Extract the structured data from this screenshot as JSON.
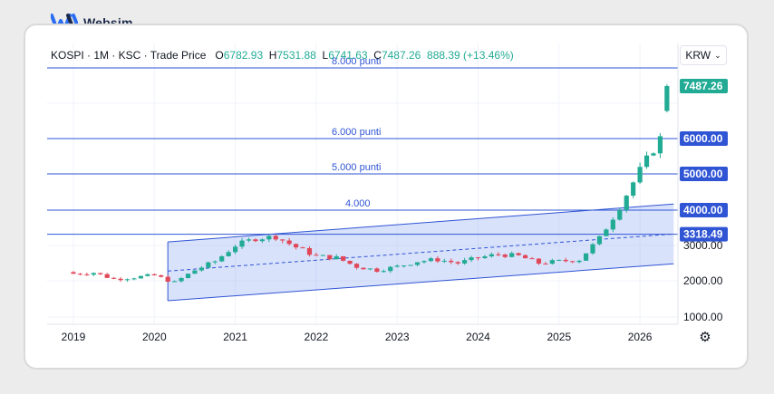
{
  "brand": {
    "name": "Websim"
  },
  "legend": {
    "symbol": "KOSPI · 1M · KSC · Trade Price",
    "open_k": "O",
    "open_v": "6782.93",
    "high_k": "H",
    "high_v": "7531.88",
    "low_k": "L",
    "low_v": "6741.63",
    "close_k": "C",
    "close_v": "7487.26",
    "change": "888.39 (+13.46%)"
  },
  "currency": {
    "label": "KRW"
  },
  "colors": {
    "up": "#22ab94",
    "down": "#e0485a",
    "level": "#2f54d4",
    "channel": "#9db5f2"
  },
  "chart_data": {
    "type": "candlestick",
    "title": "KOSPI · 1M · KSC · Trade Price",
    "x_ticks": [
      "2019",
      "2020",
      "2021",
      "2022",
      "2023",
      "2024",
      "2025",
      "2026"
    ],
    "y_ticks": [
      1000,
      2000,
      3000
    ],
    "y_axis_labels": [
      "1000.00",
      "2000.00",
      "3000.00"
    ],
    "ylim": [
      700,
      8000
    ],
    "price_badges": [
      {
        "value": 7487.26,
        "label": "7487.26",
        "kind": "last"
      },
      {
        "value": 6000,
        "label": "6000.00",
        "kind": "level"
      },
      {
        "value": 5000,
        "label": "5000.00",
        "kind": "level"
      },
      {
        "value": 4000,
        "label": "4000.00",
        "kind": "level"
      },
      {
        "value": 3318.49,
        "label": "3318.49",
        "kind": "level"
      }
    ],
    "horizontal_levels": [
      {
        "value": 8000,
        "label": "8.000 punti"
      },
      {
        "value": 6000,
        "label": "6.000 punti"
      },
      {
        "value": 5000,
        "label": "5.000 punti"
      },
      {
        "value": 4000,
        "label": "4.000"
      },
      {
        "value": 3318.49,
        "label": ""
      }
    ],
    "channel": {
      "start": "2020-03",
      "end": "2026-06",
      "upper": [
        3100,
        4170
      ],
      "lower": [
        1450,
        2480
      ],
      "mid": [
        2275,
        3325
      ]
    },
    "quarterly_closes": [
      [
        "2019-01",
        2200
      ],
      [
        "2019-04",
        2230
      ],
      [
        "2019-07",
        2050
      ],
      [
        "2019-10",
        2100
      ],
      [
        "2020-01",
        2150
      ],
      [
        "2020-04",
        1950
      ],
      [
        "2020-07",
        2300
      ],
      [
        "2020-10",
        2550
      ],
      [
        "2021-01",
        3000
      ],
      [
        "2021-04",
        3200
      ],
      [
        "2021-07",
        3250
      ],
      [
        "2021-10",
        2950
      ],
      [
        "2022-01",
        2700
      ],
      [
        "2022-04",
        2650
      ],
      [
        "2022-07",
        2400
      ],
      [
        "2022-10",
        2300
      ],
      [
        "2023-01",
        2400
      ],
      [
        "2023-04",
        2550
      ],
      [
        "2023-07",
        2600
      ],
      [
        "2023-10",
        2500
      ],
      [
        "2024-01",
        2650
      ],
      [
        "2024-04",
        2750
      ],
      [
        "2024-07",
        2700
      ],
      [
        "2024-10",
        2500
      ],
      [
        "2025-01",
        2550
      ],
      [
        "2025-04",
        2600
      ],
      [
        "2025-07",
        3200
      ],
      [
        "2025-10",
        4100
      ],
      [
        "2026-01",
        5100
      ],
      [
        "2026-04",
        6000
      ],
      [
        "2026-05",
        7487.26
      ]
    ]
  }
}
